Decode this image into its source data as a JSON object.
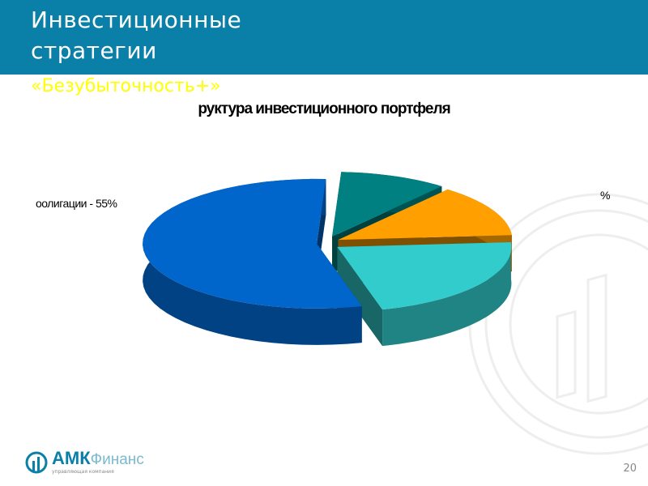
{
  "slide": {
    "title": "Инвестиционные\nстратегии",
    "subtitle": "«Безубыточность+»",
    "page_number": "20",
    "header_color": "#0a80a8"
  },
  "logo": {
    "brand": "АМК",
    "brand_suffix": "Финанс",
    "tagline": "управляющая компания"
  },
  "chart_data": {
    "type": "pie",
    "title": "руктура инвестиционного  портфеля",
    "labels_visible": [
      "оолигации - 55%",
      "%"
    ],
    "slices": [
      {
        "value": 10,
        "color": "#008080"
      },
      {
        "value": 13,
        "color": "#ffa000"
      },
      {
        "value": 22,
        "color": "#33cccc"
      },
      {
        "value": 55,
        "color": "#0066cc"
      }
    ],
    "style": "3d-exploded"
  }
}
